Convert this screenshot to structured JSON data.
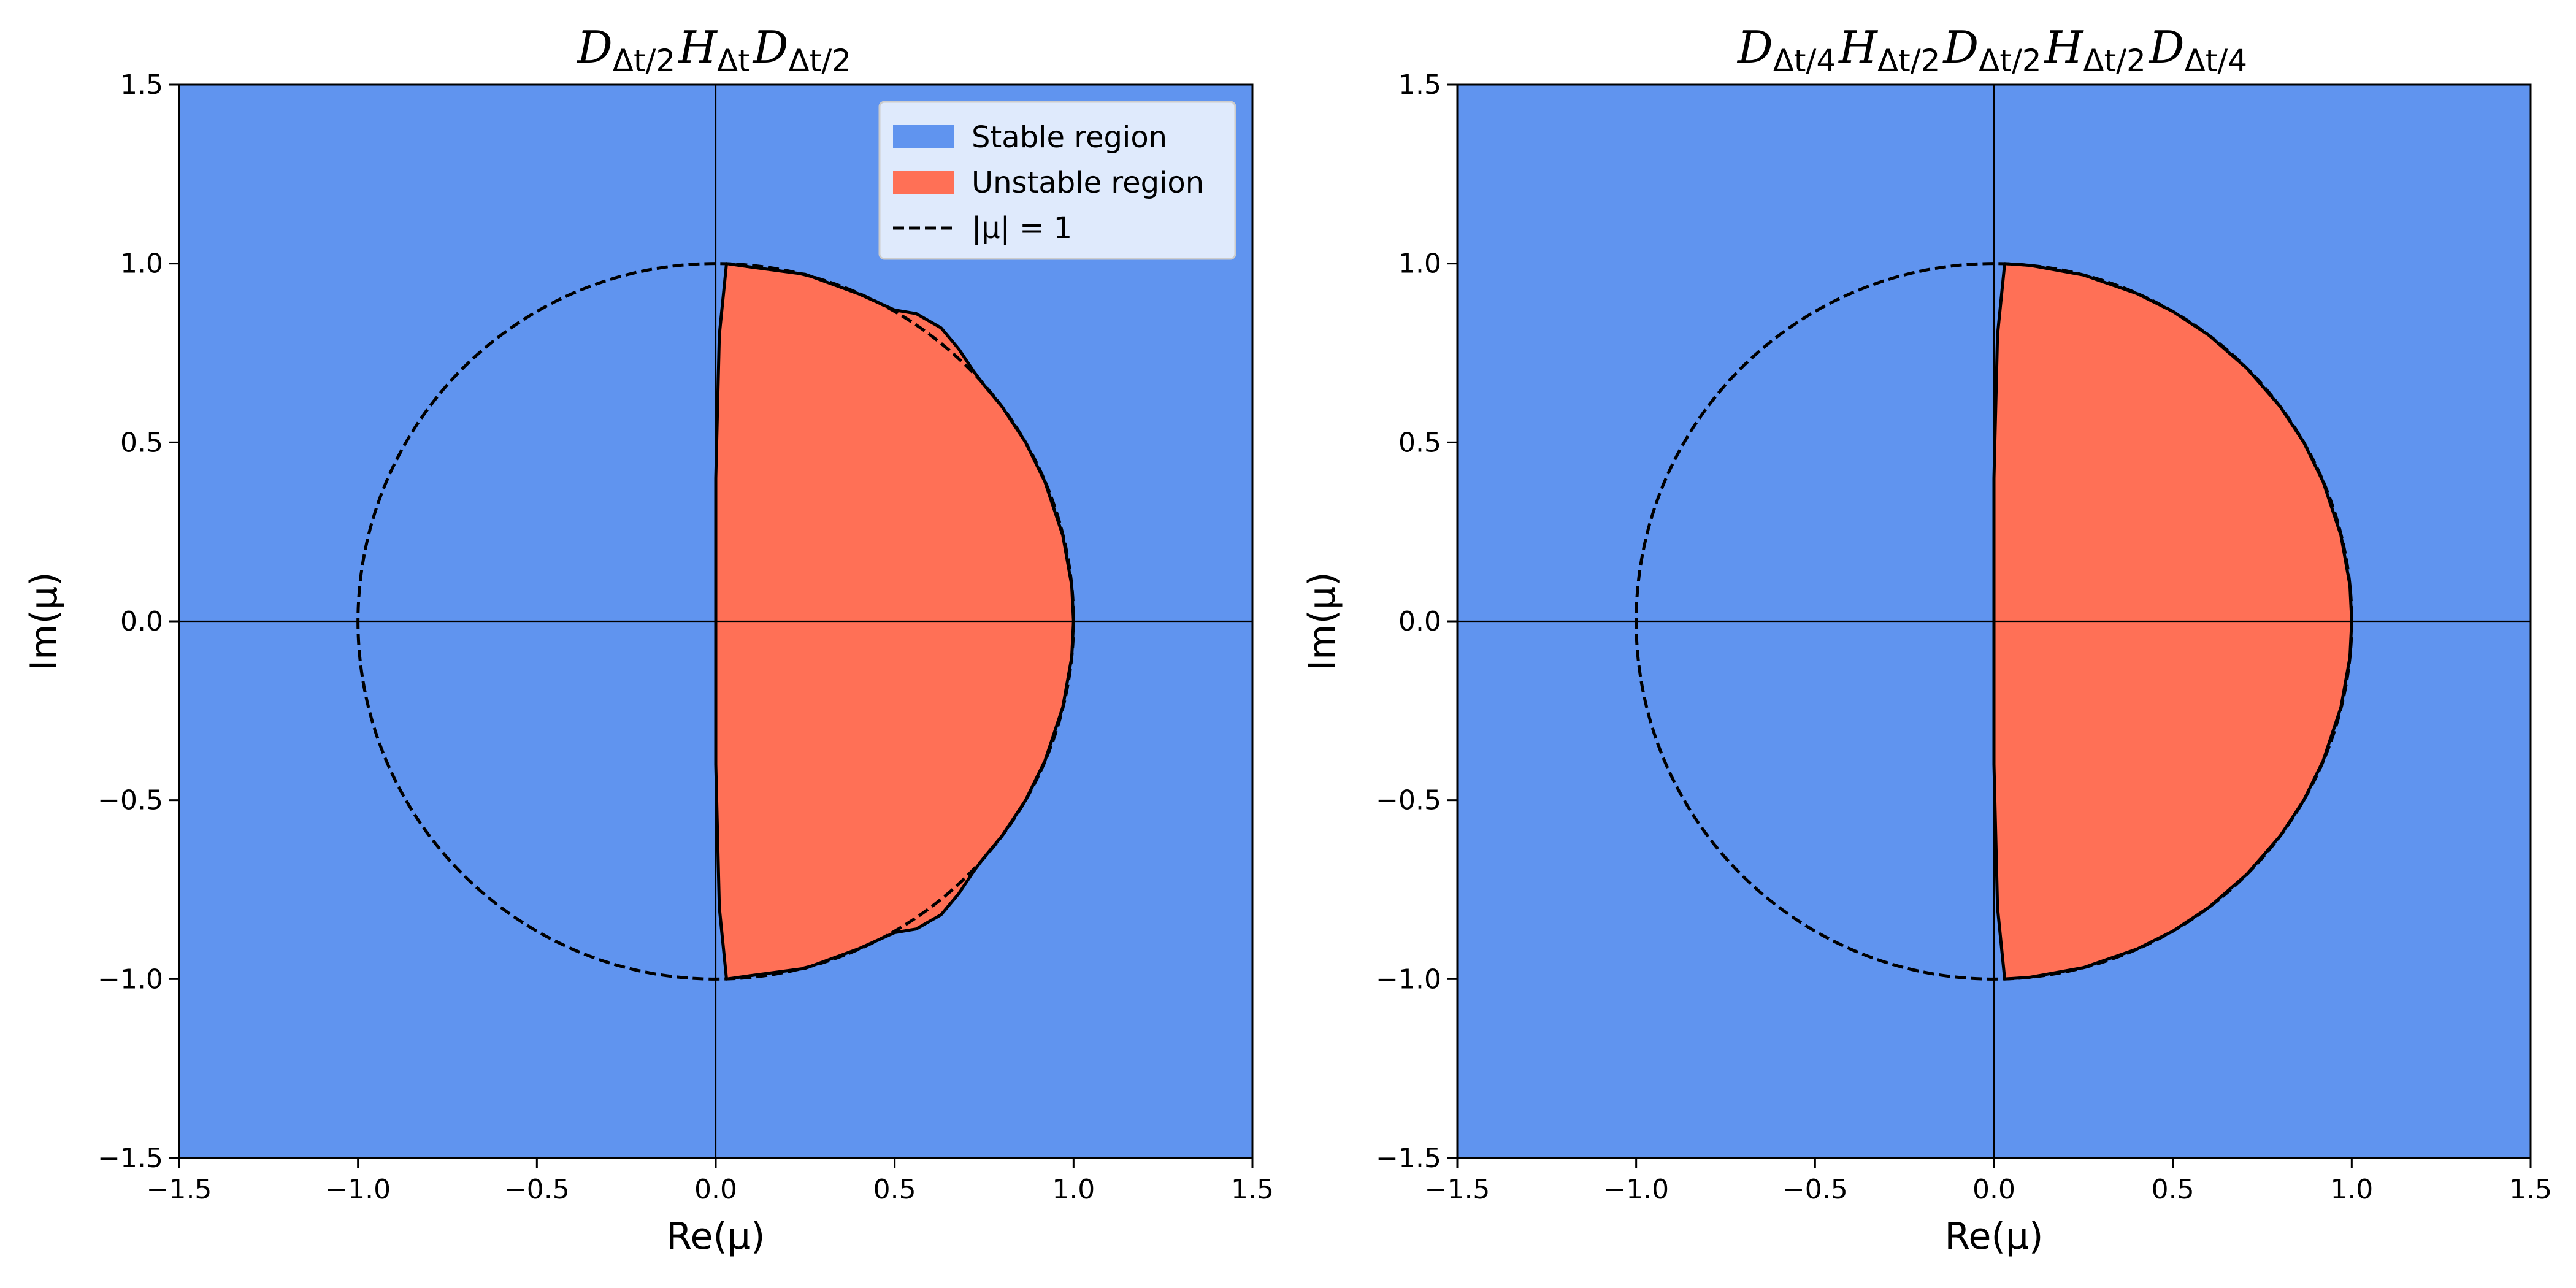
{
  "colors": {
    "stable": "#6094ef",
    "unstable": "#ff7056",
    "circle": "#000000"
  },
  "chart_data": [
    {
      "type": "area",
      "title_parts": [
        {
          "t": "D",
          "s": "Δt/2"
        },
        {
          "t": "H",
          "s": "Δt"
        },
        {
          "t": "D",
          "s": "Δt/2"
        }
      ],
      "xlabel": "Re(μ)",
      "ylabel": "Im(μ)",
      "xlim": [
        -1.5,
        1.5
      ],
      "ylim": [
        -1.5,
        1.5
      ],
      "xticks": [
        "−1.5",
        "−1.0",
        "−0.5",
        "0.0",
        "0.5",
        "1.0",
        "1.5"
      ],
      "yticks": [
        "−1.5",
        "−1.0",
        "−0.5",
        "0.0",
        "0.5",
        "1.0",
        "1.5"
      ],
      "grid": false,
      "legend": {
        "placement": "top-right",
        "entries": [
          "Stable region",
          "Unstable region",
          "|μ| = 1"
        ]
      },
      "unit_circle": {
        "radius": 1,
        "style": "dashed"
      },
      "unstable_boundary": [
        [
          0.0,
          0.0
        ],
        [
          0.0,
          0.4
        ],
        [
          0.01,
          0.8
        ],
        [
          0.03,
          1.0
        ],
        [
          0.1,
          0.99
        ],
        [
          0.25,
          0.97
        ],
        [
          0.4,
          0.915
        ],
        [
          0.5,
          0.87
        ],
        [
          0.56,
          0.86
        ],
        [
          0.63,
          0.82
        ],
        [
          0.68,
          0.76
        ],
        [
          0.72,
          0.7
        ],
        [
          0.75,
          0.66
        ],
        [
          0.8,
          0.6
        ],
        [
          0.866,
          0.5
        ],
        [
          0.92,
          0.39
        ],
        [
          0.97,
          0.24
        ],
        [
          0.995,
          0.1
        ],
        [
          1.0,
          0.0
        ],
        [
          0.995,
          -0.1
        ],
        [
          0.97,
          -0.24
        ],
        [
          0.92,
          -0.39
        ],
        [
          0.866,
          -0.5
        ],
        [
          0.8,
          -0.6
        ],
        [
          0.75,
          -0.66
        ],
        [
          0.72,
          -0.7
        ],
        [
          0.68,
          -0.76
        ],
        [
          0.63,
          -0.82
        ],
        [
          0.56,
          -0.86
        ],
        [
          0.5,
          -0.87
        ],
        [
          0.4,
          -0.915
        ],
        [
          0.25,
          -0.97
        ],
        [
          0.1,
          -0.99
        ],
        [
          0.03,
          -1.0
        ],
        [
          0.01,
          -0.8
        ],
        [
          0.0,
          -0.4
        ]
      ]
    },
    {
      "type": "area",
      "title_parts": [
        {
          "t": "D",
          "s": "Δt/4"
        },
        {
          "t": "H",
          "s": "Δt/2"
        },
        {
          "t": "D",
          "s": "Δt/2"
        },
        {
          "t": "H",
          "s": "Δt/2"
        },
        {
          "t": "D",
          "s": "Δt/4"
        }
      ],
      "xlabel": "Re(μ)",
      "ylabel": "Im(μ)",
      "xlim": [
        -1.5,
        1.5
      ],
      "ylim": [
        -1.5,
        1.5
      ],
      "xticks": [
        "−1.5",
        "−1.0",
        "−0.5",
        "0.0",
        "0.5",
        "1.0",
        "1.5"
      ],
      "yticks": [
        "−1.5",
        "−1.0",
        "−0.5",
        "0.0",
        "0.5",
        "1.0",
        "1.5"
      ],
      "grid": false,
      "legend": null,
      "unit_circle": {
        "radius": 1,
        "style": "dashed"
      },
      "unstable_boundary": [
        [
          0.0,
          0.0
        ],
        [
          0.0,
          0.4
        ],
        [
          0.01,
          0.8
        ],
        [
          0.03,
          1.0
        ],
        [
          0.1,
          0.995
        ],
        [
          0.25,
          0.968
        ],
        [
          0.4,
          0.916
        ],
        [
          0.5,
          0.866
        ],
        [
          0.6,
          0.8
        ],
        [
          0.707,
          0.707
        ],
        [
          0.8,
          0.6
        ],
        [
          0.866,
          0.5
        ],
        [
          0.92,
          0.39
        ],
        [
          0.97,
          0.24
        ],
        [
          0.995,
          0.1
        ],
        [
          1.0,
          0.0
        ],
        [
          0.995,
          -0.1
        ],
        [
          0.97,
          -0.24
        ],
        [
          0.92,
          -0.39
        ],
        [
          0.866,
          -0.5
        ],
        [
          0.8,
          -0.6
        ],
        [
          0.707,
          -0.707
        ],
        [
          0.6,
          -0.8
        ],
        [
          0.5,
          -0.866
        ],
        [
          0.4,
          -0.916
        ],
        [
          0.25,
          -0.968
        ],
        [
          0.1,
          -0.995
        ],
        [
          0.03,
          -1.0
        ],
        [
          0.01,
          -0.8
        ],
        [
          0.0,
          -0.4
        ]
      ]
    }
  ]
}
